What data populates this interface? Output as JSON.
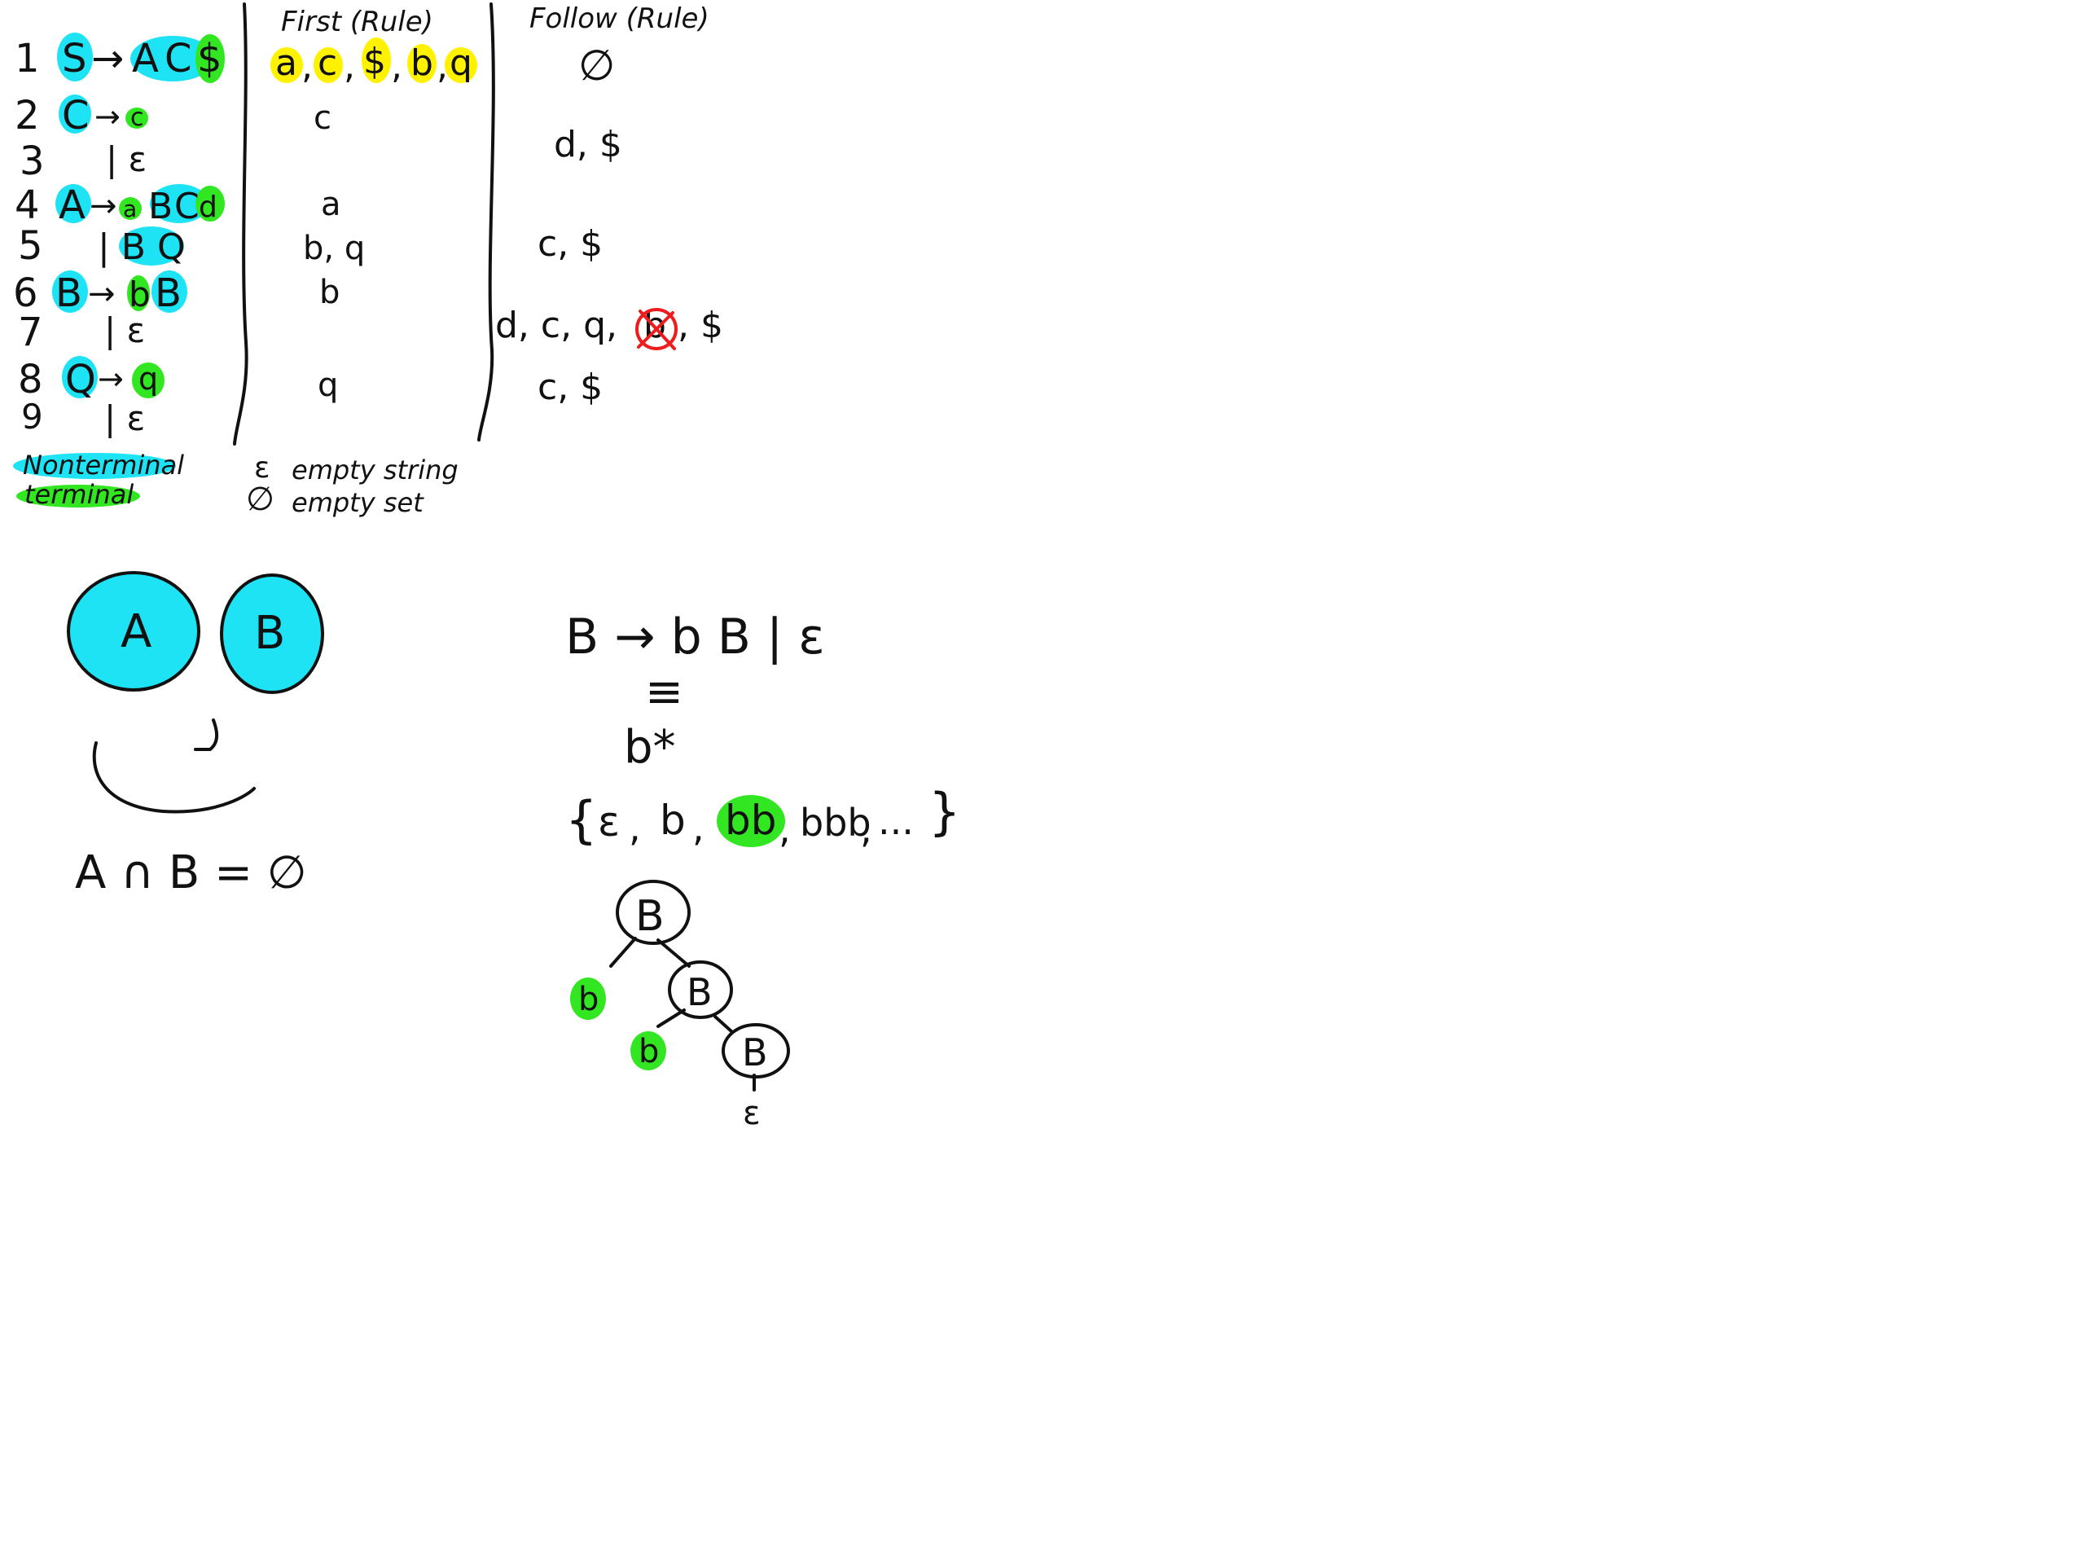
{
  "headers": {
    "first": "First (Rule)",
    "follow": "Follow (Rule)"
  },
  "grammar": {
    "rules": [
      {
        "num": "1",
        "lhs": "S",
        "arrow": "→",
        "rhs": [
          "A",
          "C",
          "$"
        ]
      },
      {
        "num": "2",
        "lhs": "C",
        "arrow": "→",
        "rhs": [
          "c"
        ]
      },
      {
        "num": "3",
        "alt": "| ε"
      },
      {
        "num": "4",
        "lhs": "A",
        "arrow": "→",
        "rhs": [
          "a",
          "B",
          "C",
          "d"
        ]
      },
      {
        "num": "5",
        "alt": "| B Q"
      },
      {
        "num": "6",
        "lhs": "B",
        "arrow": "→",
        "rhs": [
          "b",
          "B"
        ]
      },
      {
        "num": "7",
        "alt": "| ε"
      },
      {
        "num": "8",
        "lhs": "Q",
        "arrow": "→",
        "rhs": [
          "q"
        ]
      },
      {
        "num": "9",
        "alt": "| ε"
      }
    ]
  },
  "first": {
    "row1": [
      "a",
      "c",
      "$",
      "b",
      "q"
    ],
    "sep": ",",
    "row2": "c",
    "row4": "a",
    "row5": "b, q",
    "row6": "b",
    "row8": "q"
  },
  "follow": {
    "row1": "∅",
    "row2": "d, $",
    "row4": "c, $",
    "row6_prefix": "d, c, q,",
    "row6_crossed": "b",
    "row6_suffix": ", $",
    "row8": "c, $"
  },
  "legend": {
    "nonterminal": "Nonterminal",
    "terminal": "terminal",
    "epsilon_symbol": "ε",
    "epsilon_desc": "empty string",
    "emptyset_symbol": "∅",
    "emptyset_desc": "empty set"
  },
  "venn": {
    "set_a": "A",
    "set_b": "B",
    "equation": "A ∩ B = ∅"
  },
  "derivation": {
    "rule": "B → b B | ε",
    "equiv": "≡",
    "regex": "b*",
    "set_open": "{",
    "set_items": [
      "ε",
      "b",
      "bb",
      "bbb",
      "..."
    ],
    "set_close": "}",
    "tree": {
      "nodes": [
        "B",
        "B",
        "B"
      ],
      "leaves": [
        "b",
        "b",
        "ε"
      ]
    }
  },
  "colors": {
    "nonterminal": "#1ee3f5",
    "terminal": "#33e622",
    "first_highlight": "#fff200",
    "strike": "#ee1c1c"
  }
}
